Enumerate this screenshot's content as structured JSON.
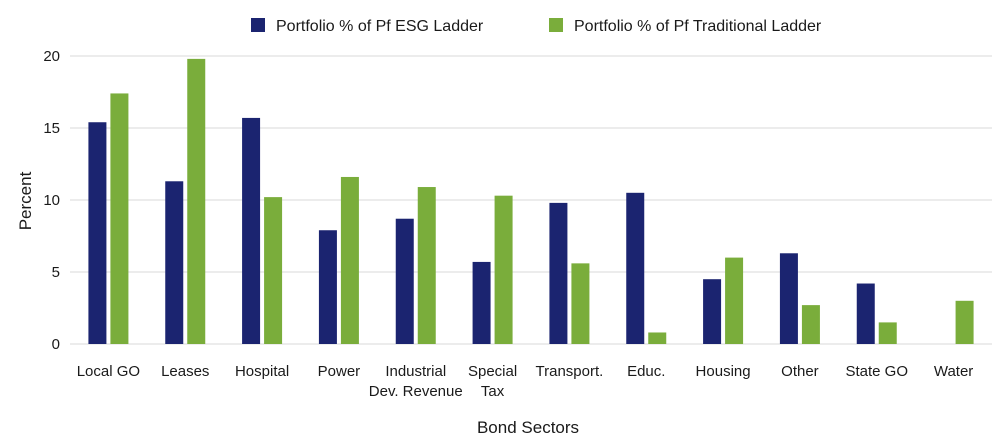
{
  "chart_data": {
    "type": "bar",
    "xlabel": "Bond Sectors",
    "ylabel": "Percent",
    "ylim": [
      0,
      20
    ],
    "yticks": [
      0,
      5,
      10,
      15,
      20
    ],
    "grid": true,
    "legend_position": "top-center",
    "categories": [
      [
        "Local GO"
      ],
      [
        "Leases"
      ],
      [
        "Hospital"
      ],
      [
        "Power"
      ],
      [
        "Industrial",
        "Dev. Revenue"
      ],
      [
        "Special",
        "Tax"
      ],
      [
        "Transport."
      ],
      [
        "Educ."
      ],
      [
        "Housing"
      ],
      [
        "Other"
      ],
      [
        "State GO"
      ],
      [
        "Water"
      ]
    ],
    "series": [
      {
        "name": "Portfolio % of Pf ESG Ladder",
        "color": "#1b2470",
        "values": [
          15.4,
          11.3,
          15.7,
          7.9,
          8.7,
          5.7,
          9.8,
          10.5,
          4.5,
          6.3,
          4.2,
          0
        ]
      },
      {
        "name": "Portfolio % of Pf Traditional Ladder",
        "color": "#7aad3b",
        "values": [
          17.4,
          19.8,
          10.2,
          11.6,
          10.9,
          10.3,
          5.6,
          0.8,
          6.0,
          2.7,
          1.5,
          3.0
        ]
      }
    ],
    "grid_color": "#d9d9d9"
  }
}
